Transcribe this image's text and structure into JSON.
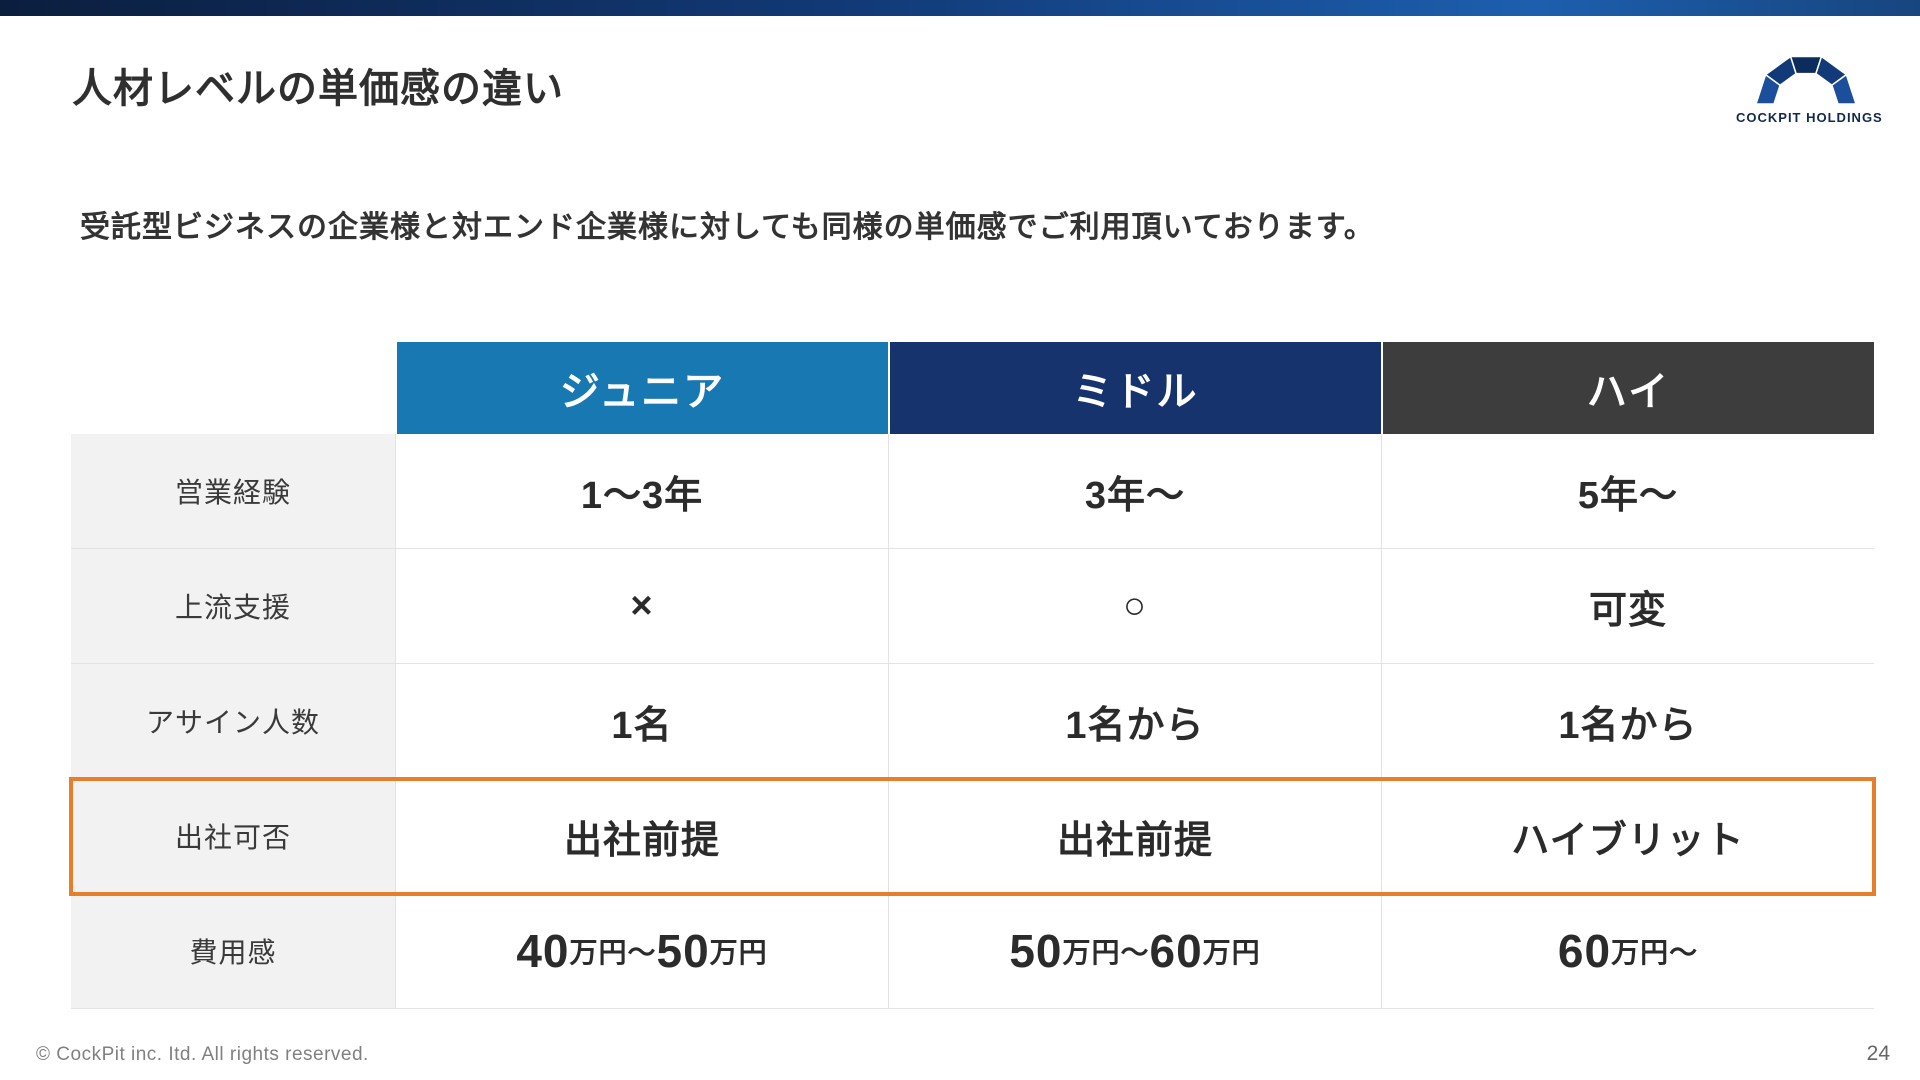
{
  "slide": {
    "title": "人材レベルの単価感の違い",
    "subtitle": "受託型ビジネスの企業様と対エンド企業様に対しても同様の単価感でご利用頂いております。",
    "logo_text": "COCKPIT HOLDINGS",
    "footer": "© CockPit inc. Itd. All rights reserved.",
    "page_number": "24"
  },
  "colors": {
    "topbar_left": "#0b1e3e",
    "topbar_right": "#1d5fae",
    "junior_header": "#1878b1",
    "middle_header": "#16336e",
    "high_header": "#3d3d3d",
    "label_bg": "#f2f2f2",
    "highlight_border": "#e87d2c"
  },
  "chart_data": {
    "type": "table",
    "title": "人材レベルの単価感の違い",
    "columns": [
      {
        "label": "ジュニア",
        "color": "#1878b1"
      },
      {
        "label": "ミドル",
        "color": "#16336e"
      },
      {
        "label": "ハイ",
        "color": "#3d3d3d"
      }
    ],
    "rows": [
      {
        "label": "営業経験",
        "values": [
          "1～3年",
          "3年～",
          "5年～"
        ]
      },
      {
        "label": "上流支援",
        "values": [
          "×",
          "○",
          "可変"
        ]
      },
      {
        "label": "アサイン人数",
        "values": [
          "1名",
          "1名から",
          "1名から"
        ]
      },
      {
        "label": "出社可否",
        "values": [
          "出社前提",
          "出社前提",
          "ハイブリット"
        ],
        "highlighted": true
      },
      {
        "label": "費用感",
        "values": [
          "40万円～50万円",
          "50万円～60万円",
          "60万円～"
        ],
        "emphasize_numbers": true
      }
    ]
  }
}
